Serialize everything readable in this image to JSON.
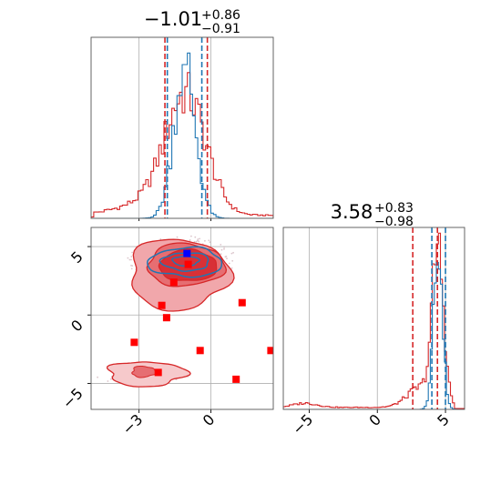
{
  "chart_data": {
    "type": "corner",
    "parameters": [
      {
        "title_value": "−1.01",
        "title_sup": "+0.86",
        "title_sub": "−0.91",
        "xlim": [
          -5.0,
          2.6
        ]
      },
      {
        "title_value": "3.58",
        "title_sup": "+0.83",
        "title_sub": "−0.98",
        "xlim": [
          -6.9,
          6.4
        ]
      }
    ],
    "ticks": {
      "p1": [
        {
          "v": -3,
          "label": "−3"
        },
        {
          "v": 0,
          "label": "0"
        }
      ],
      "p2": [
        {
          "v": -5,
          "label": "−5"
        },
        {
          "v": 0,
          "label": "0"
        },
        {
          "v": 5,
          "label": "5"
        }
      ]
    },
    "colors": {
      "blue": "#1f77b4",
      "red": "#d62728",
      "marker": "#ff0000",
      "marker_blue": "#0000ff",
      "grid": "#b0b0b0",
      "scatter": "#dcc6cc"
    },
    "hist1": {
      "quantiles_red": [
        -1.92,
        -0.15
      ],
      "quantiles_blue": [
        -1.82,
        -0.38
      ]
    },
    "hist2": {
      "quantiles_red": [
        2.6,
        4.41
      ],
      "quantiles_blue": [
        4.0,
        5.0
      ]
    },
    "joint_markers": [
      {
        "x": -1.0,
        "y": 4.5,
        "color": "blue"
      },
      {
        "x": -0.95,
        "y": 3.7,
        "color": "red"
      },
      {
        "x": -1.55,
        "y": 2.4,
        "color": "red"
      },
      {
        "x": -2.05,
        "y": 0.7,
        "color": "red"
      },
      {
        "x": -1.85,
        "y": -0.2,
        "color": "red"
      },
      {
        "x": 1.3,
        "y": 0.9,
        "color": "red"
      },
      {
        "x": -3.2,
        "y": -2.0,
        "color": "red"
      },
      {
        "x": -0.45,
        "y": -2.6,
        "color": "red"
      },
      {
        "x": 2.5,
        "y": -2.6,
        "color": "red"
      },
      {
        "x": -2.2,
        "y": -4.2,
        "color": "red"
      },
      {
        "x": 1.05,
        "y": -4.7,
        "color": "red"
      }
    ]
  }
}
